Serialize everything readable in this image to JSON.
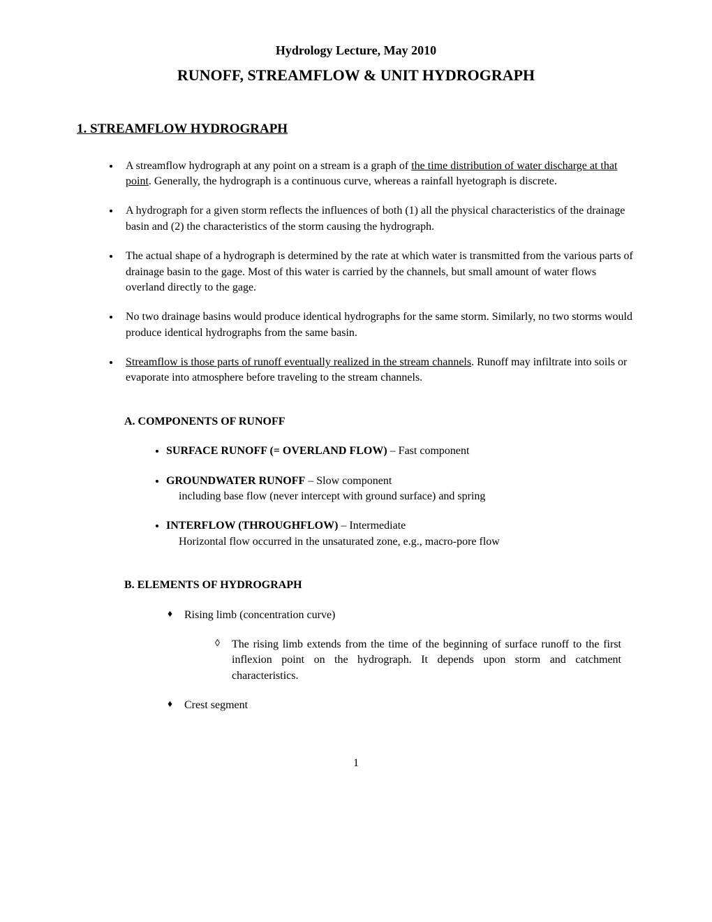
{
  "lecture_line": "Hydrology Lecture, May 2010",
  "main_title": "RUNOFF, STREAMFLOW & UNIT HYDROGRAPH",
  "section1": {
    "heading": "1. STREAMFLOW HYDROGRAPH",
    "bullets": {
      "b1_pre": "A streamflow hydrograph at any point on a stream is a graph of ",
      "b1_underline": "the time distribution of water discharge at that point",
      "b1_post": ". Generally, the hydrograph is a continuous curve, whereas a rainfall hyetograph is discrete.",
      "b2": "A hydrograph for a given storm reflects the influences of both (1) all the physical characteristics of the drainage basin and (2) the characteristics of the storm causing the hydrograph.",
      "b3": "The actual shape of a hydrograph is determined by the rate at which water is transmitted from the various parts of drainage basin to the gage. Most of this water is carried by the channels, but small amount of water flows overland directly to the gage.",
      "b4": "No two drainage basins would produce identical hydrographs for the same storm. Similarly, no two storms would produce identical hydrographs from the same basin.",
      "b5_underline": "Streamflow is those parts of runoff eventually realized in the stream channels",
      "b5_post": ". Runoff may infiltrate into soils or evaporate into atmosphere before traveling to the stream channels."
    }
  },
  "sectionA": {
    "heading": "A.  COMPONENTS OF RUNOFF",
    "items": {
      "i1_bold": "SURFACE RUNOFF (= OVERLAND FLOW)",
      "i1_rest": " – Fast component",
      "i2_bold": "GROUNDWATER RUNOFF",
      "i2_rest": "  – Slow component",
      "i2_note": "including base flow (never intercept with ground surface) and spring",
      "i3_bold": "INTERFLOW (THROUGHFLOW)",
      "i3_rest": " – Intermediate",
      "i3_note": " Horizontal flow occurred in the unsaturated zone, e.g., macro-pore flow"
    }
  },
  "sectionB": {
    "heading": "B.  ELEMENTS OF HYDROGRAPH",
    "items": {
      "i1": "Rising limb (concentration curve)",
      "i1_sub": "The rising limb extends from the time of the beginning of surface runoff to the first inflexion point on the hydrograph. It depends upon storm and catchment characteristics.",
      "i2": "Crest segment"
    }
  },
  "page_number": "1"
}
